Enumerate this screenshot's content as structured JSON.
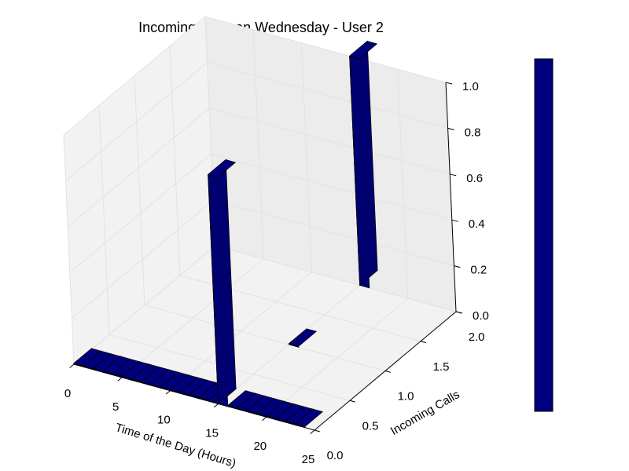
{
  "chart_data": {
    "type": "bar3d",
    "title": "Incoming Calls on Wednesday - User 2",
    "xlabel": "Time of the Day (Hours)",
    "ylabel": "Incoming Calls",
    "zlabel": "",
    "xlim": [
      0,
      25
    ],
    "ylim": [
      0,
      2
    ],
    "zlim": [
      0,
      1
    ],
    "xticks": [
      "0",
      "5",
      "10",
      "15",
      "20",
      "25"
    ],
    "yticks": [
      "0.0",
      "0.5",
      "1.0",
      "1.5",
      "2.0"
    ],
    "zticks": [
      "0.0",
      "0.2",
      "0.4",
      "0.6",
      "0.8",
      "1.0"
    ],
    "bar_color": "#00007f",
    "colorbar_color": "#00007f",
    "grid": true,
    "bars": [
      {
        "x": 0,
        "y": 0,
        "z": 0
      },
      {
        "x": 1,
        "y": 0,
        "z": 0
      },
      {
        "x": 2,
        "y": 0,
        "z": 0
      },
      {
        "x": 3,
        "y": 0,
        "z": 0
      },
      {
        "x": 4,
        "y": 0,
        "z": 0
      },
      {
        "x": 5,
        "y": 0,
        "z": 0
      },
      {
        "x": 6,
        "y": 0,
        "z": 0
      },
      {
        "x": 7,
        "y": 0,
        "z": 0
      },
      {
        "x": 8,
        "y": 0,
        "z": 0
      },
      {
        "x": 9,
        "y": 0,
        "z": 0
      },
      {
        "x": 10,
        "y": 0,
        "z": 0
      },
      {
        "x": 11,
        "y": 0,
        "z": 0
      },
      {
        "x": 12,
        "y": 0,
        "z": 0
      },
      {
        "x": 13,
        "y": 0,
        "z": 0
      },
      {
        "x": 14,
        "y": 0,
        "z": 0
      },
      {
        "x": 15,
        "y": 0,
        "z": 1
      },
      {
        "x": 16,
        "y": 0,
        "z": 0
      },
      {
        "x": 17,
        "y": 0,
        "z": 0
      },
      {
        "x": 18,
        "y": 0,
        "z": 0
      },
      {
        "x": 19,
        "y": 0,
        "z": 0
      },
      {
        "x": 20,
        "y": 0,
        "z": 0
      },
      {
        "x": 21,
        "y": 0,
        "z": 0
      },
      {
        "x": 22,
        "y": 0,
        "z": 0
      },
      {
        "x": 23,
        "y": 0,
        "z": 0
      }
    ],
    "extra_bars": [
      {
        "x": 15,
        "y": 1,
        "z": 0
      },
      {
        "x": 15,
        "y": 2,
        "z": 1
      }
    ]
  }
}
